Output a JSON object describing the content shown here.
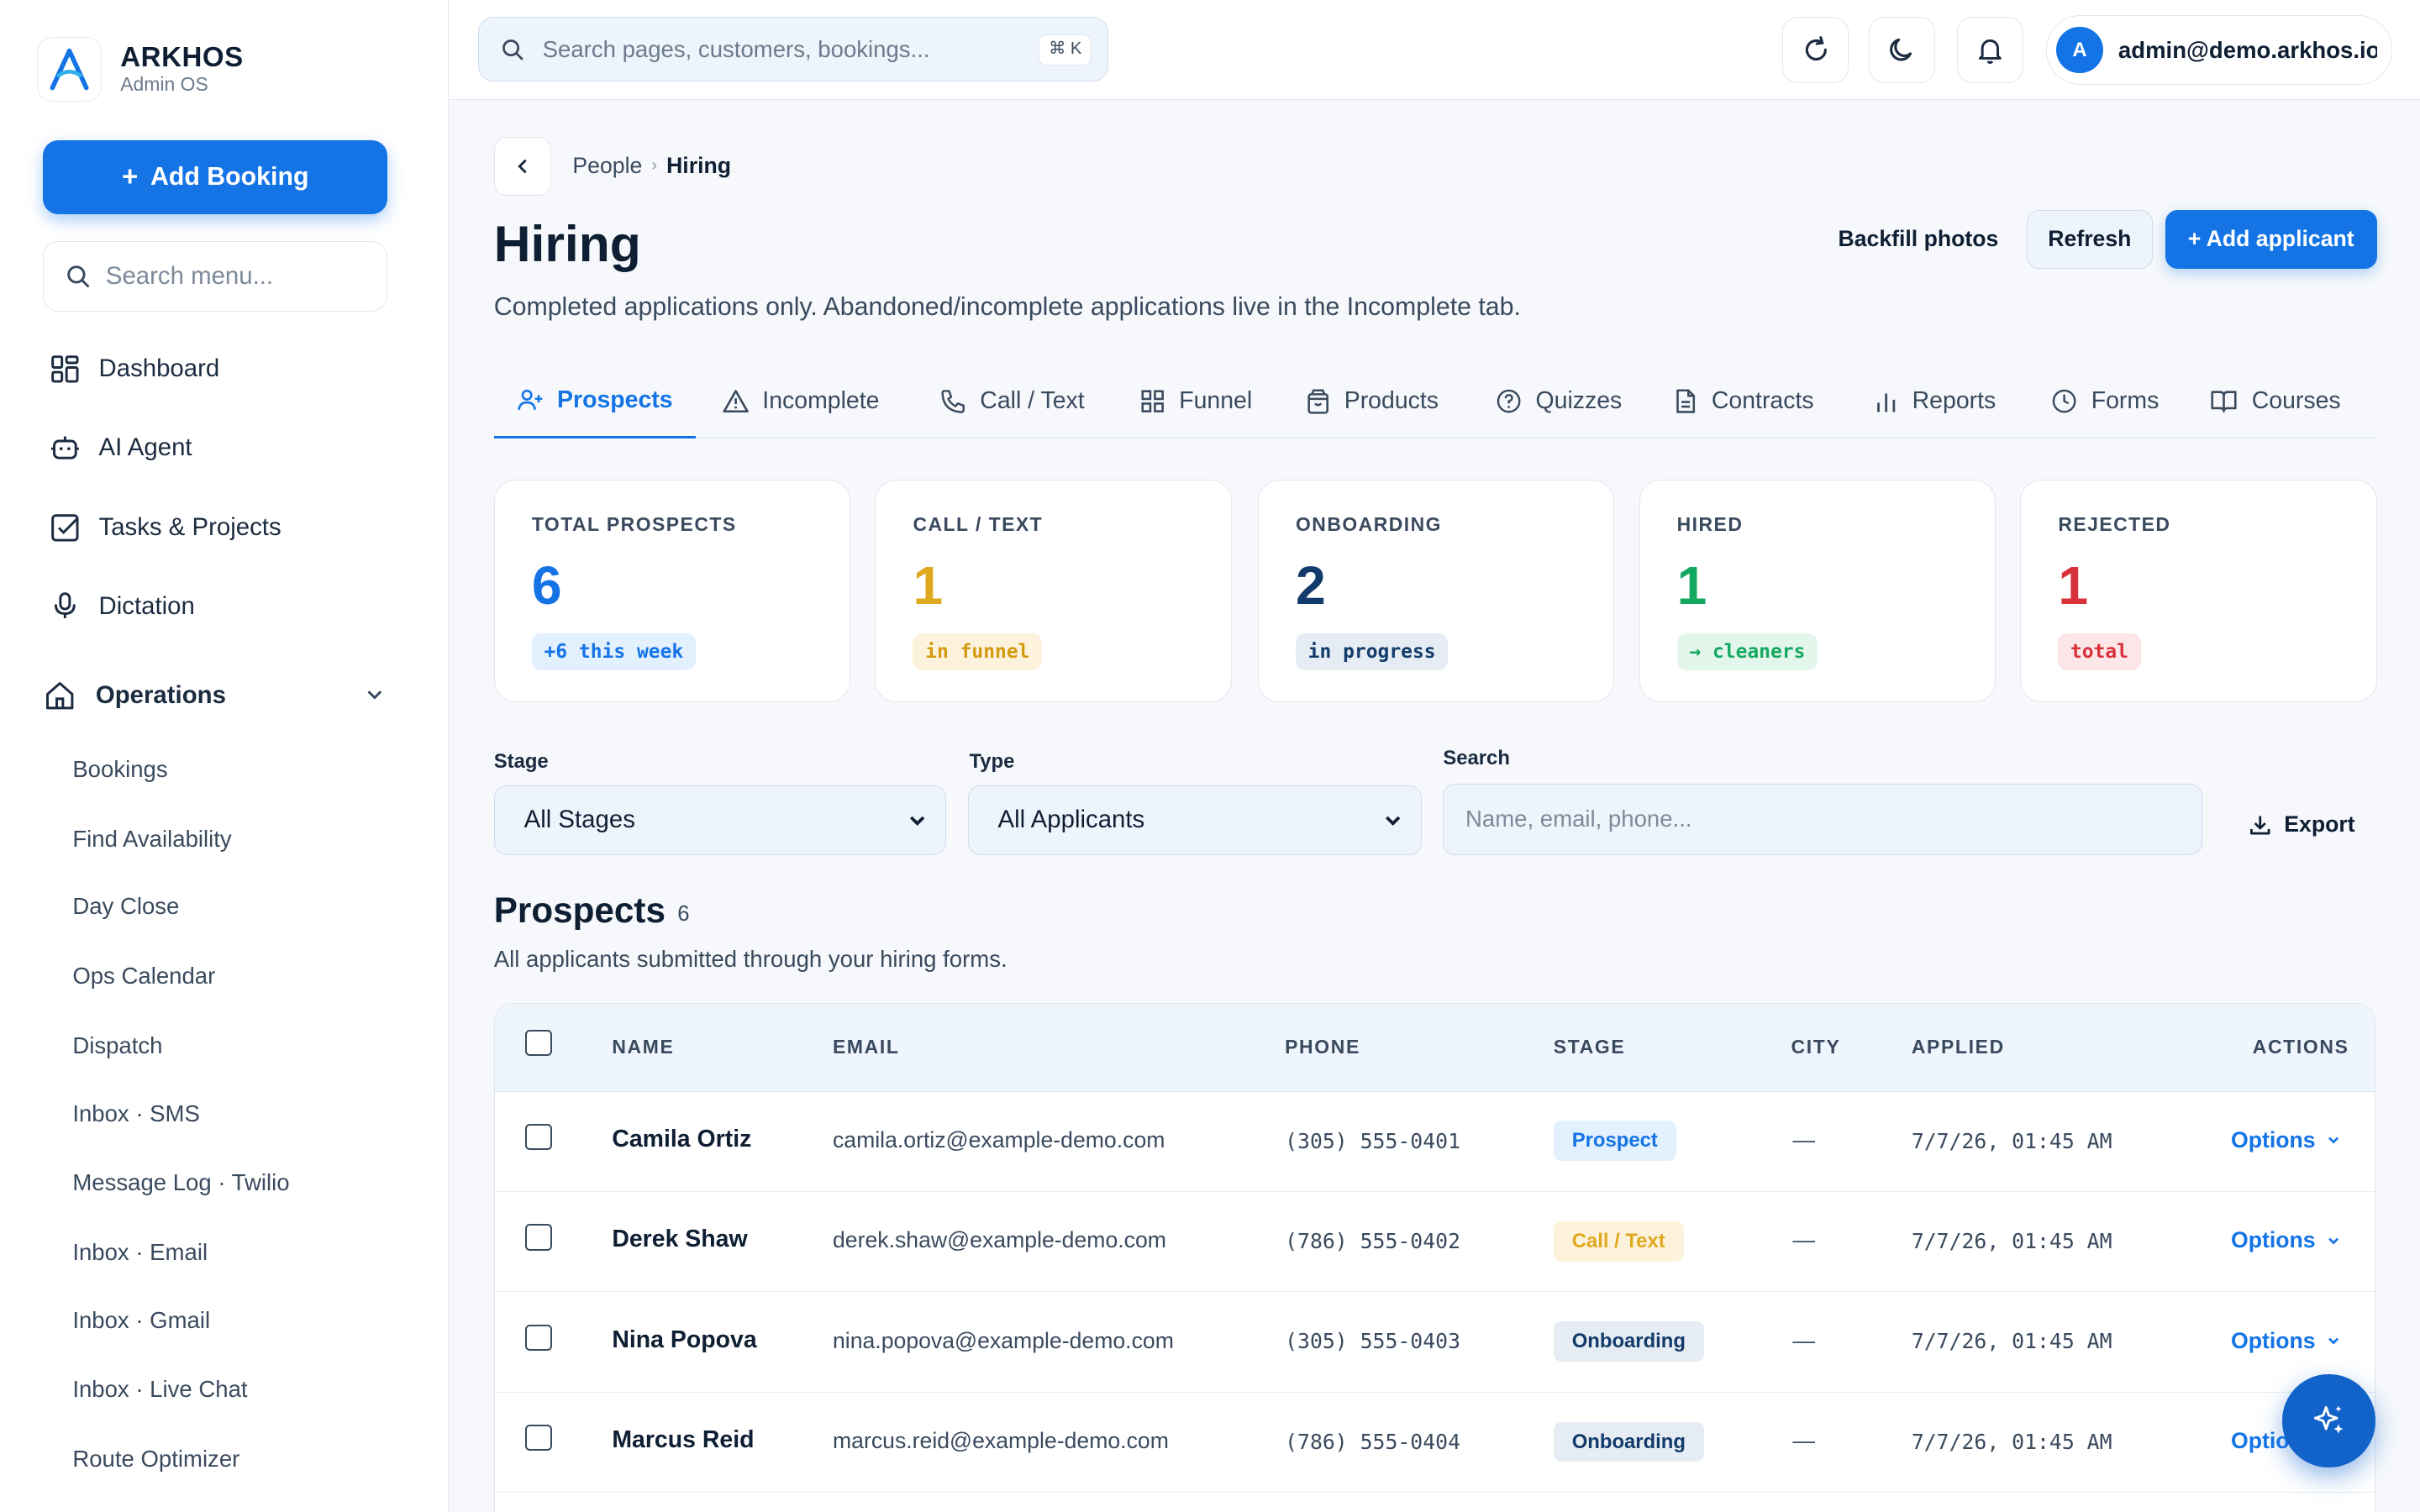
{
  "brand": {
    "name": "ARKHOS",
    "subtitle": "Admin OS"
  },
  "sidebar": {
    "add_booking_label": "Add Booking",
    "search_placeholder": "Search menu...",
    "nav": [
      {
        "label": "Dashboard",
        "icon": "grid-icon"
      },
      {
        "label": "AI Agent",
        "icon": "robot-icon"
      },
      {
        "label": "Tasks & Projects",
        "icon": "checkbox-icon"
      },
      {
        "label": "Dictation",
        "icon": "microphone-icon"
      }
    ],
    "operations": {
      "label": "Operations",
      "icon": "home-icon",
      "items": [
        "Bookings",
        "Find Availability",
        "Day Close",
        "Ops Calendar",
        "Dispatch",
        "Inbox · SMS",
        "Message Log · Twilio",
        "Inbox · Email",
        "Inbox · Gmail",
        "Inbox · Live Chat",
        "Route Optimizer"
      ]
    }
  },
  "topbar": {
    "search_placeholder": "Search pages, customers, bookings...",
    "shortcut": "⌘ K",
    "user_initial": "A",
    "user_email": "admin@demo.arkhos.io"
  },
  "page": {
    "breadcrumb": [
      "People",
      "Hiring"
    ],
    "title": "Hiring",
    "description": "Completed applications only. Abandoned/incomplete applications live in the Incomplete tab.",
    "actions": {
      "backfill": "Backfill photos",
      "refresh": "Refresh",
      "add": "+ Add applicant"
    }
  },
  "tabs": [
    {
      "label": "Prospects",
      "icon": "user-plus-icon",
      "active": true
    },
    {
      "label": "Incomplete",
      "icon": "warning-icon"
    },
    {
      "label": "Call / Text",
      "icon": "phone-icon"
    },
    {
      "label": "Funnel",
      "icon": "grid-icon"
    },
    {
      "label": "Products",
      "icon": "bag-icon"
    },
    {
      "label": "Quizzes",
      "icon": "question-icon"
    },
    {
      "label": "Contracts",
      "icon": "document-icon"
    },
    {
      "label": "Reports",
      "icon": "bar-chart-icon"
    },
    {
      "label": "Forms",
      "icon": "clock-icon"
    },
    {
      "label": "Courses",
      "icon": "book-icon"
    }
  ],
  "stats": [
    {
      "label": "TOTAL PROSPECTS",
      "value": "6",
      "badge": "+6 this week",
      "color": "#1474e6",
      "badge_bg": "#e3f0fd"
    },
    {
      "label": "CALL / TEXT",
      "value": "1",
      "badge": "in funnel",
      "color": "#e0a81e",
      "badge_bg": "#fdf3dc"
    },
    {
      "label": "ONBOARDING",
      "value": "2",
      "badge": "in progress",
      "color": "#123b6b",
      "badge_bg": "#e6ecf3"
    },
    {
      "label": "HIRED",
      "value": "1",
      "badge": "→ cleaners",
      "color": "#15a860",
      "badge_bg": "#e2f6ec"
    },
    {
      "label": "REJECTED",
      "value": "1",
      "badge": "total",
      "color": "#d8313a",
      "badge_bg": "#fde6e7"
    }
  ],
  "filters": {
    "stage_label": "Stage",
    "stage_value": "All Stages",
    "type_label": "Type",
    "type_value": "All Applicants",
    "search_label": "Search",
    "search_placeholder": "Name, email, phone...",
    "export_label": "Export"
  },
  "section": {
    "title": "Prospects",
    "count": "6",
    "description": "All applicants submitted through your hiring forms."
  },
  "table": {
    "columns": [
      "NAME",
      "EMAIL",
      "PHONE",
      "STAGE",
      "CITY",
      "APPLIED",
      "ACTIONS"
    ],
    "rows": [
      {
        "name": "Camila Ortiz",
        "email": "camila.ortiz@example-demo.com",
        "phone": "(305) 555-0401",
        "stage": "Prospect",
        "city": "—",
        "applied": "7/7/26, 01:45 AM",
        "action": "Options"
      },
      {
        "name": "Derek Shaw",
        "email": "derek.shaw@example-demo.com",
        "phone": "(786) 555-0402",
        "stage": "Call / Text",
        "city": "—",
        "applied": "7/7/26, 01:45 AM",
        "action": "Options"
      },
      {
        "name": "Nina Popova",
        "email": "nina.popova@example-demo.com",
        "phone": "(305) 555-0403",
        "stage": "Onboarding",
        "city": "—",
        "applied": "7/7/26, 01:45 AM",
        "action": "Options"
      },
      {
        "name": "Marcus Reid",
        "email": "marcus.reid@example-demo.com",
        "phone": "(786) 555-0404",
        "stage": "Onboarding",
        "city": "—",
        "applied": "7/7/26, 01:45 AM",
        "action": "Options"
      }
    ]
  },
  "colors": {
    "accent": "#1474e6",
    "prospect_badge": "#e3f0fd",
    "call_badge": "#fdf3dc",
    "onboarding_badge": "#e6ecf3"
  }
}
